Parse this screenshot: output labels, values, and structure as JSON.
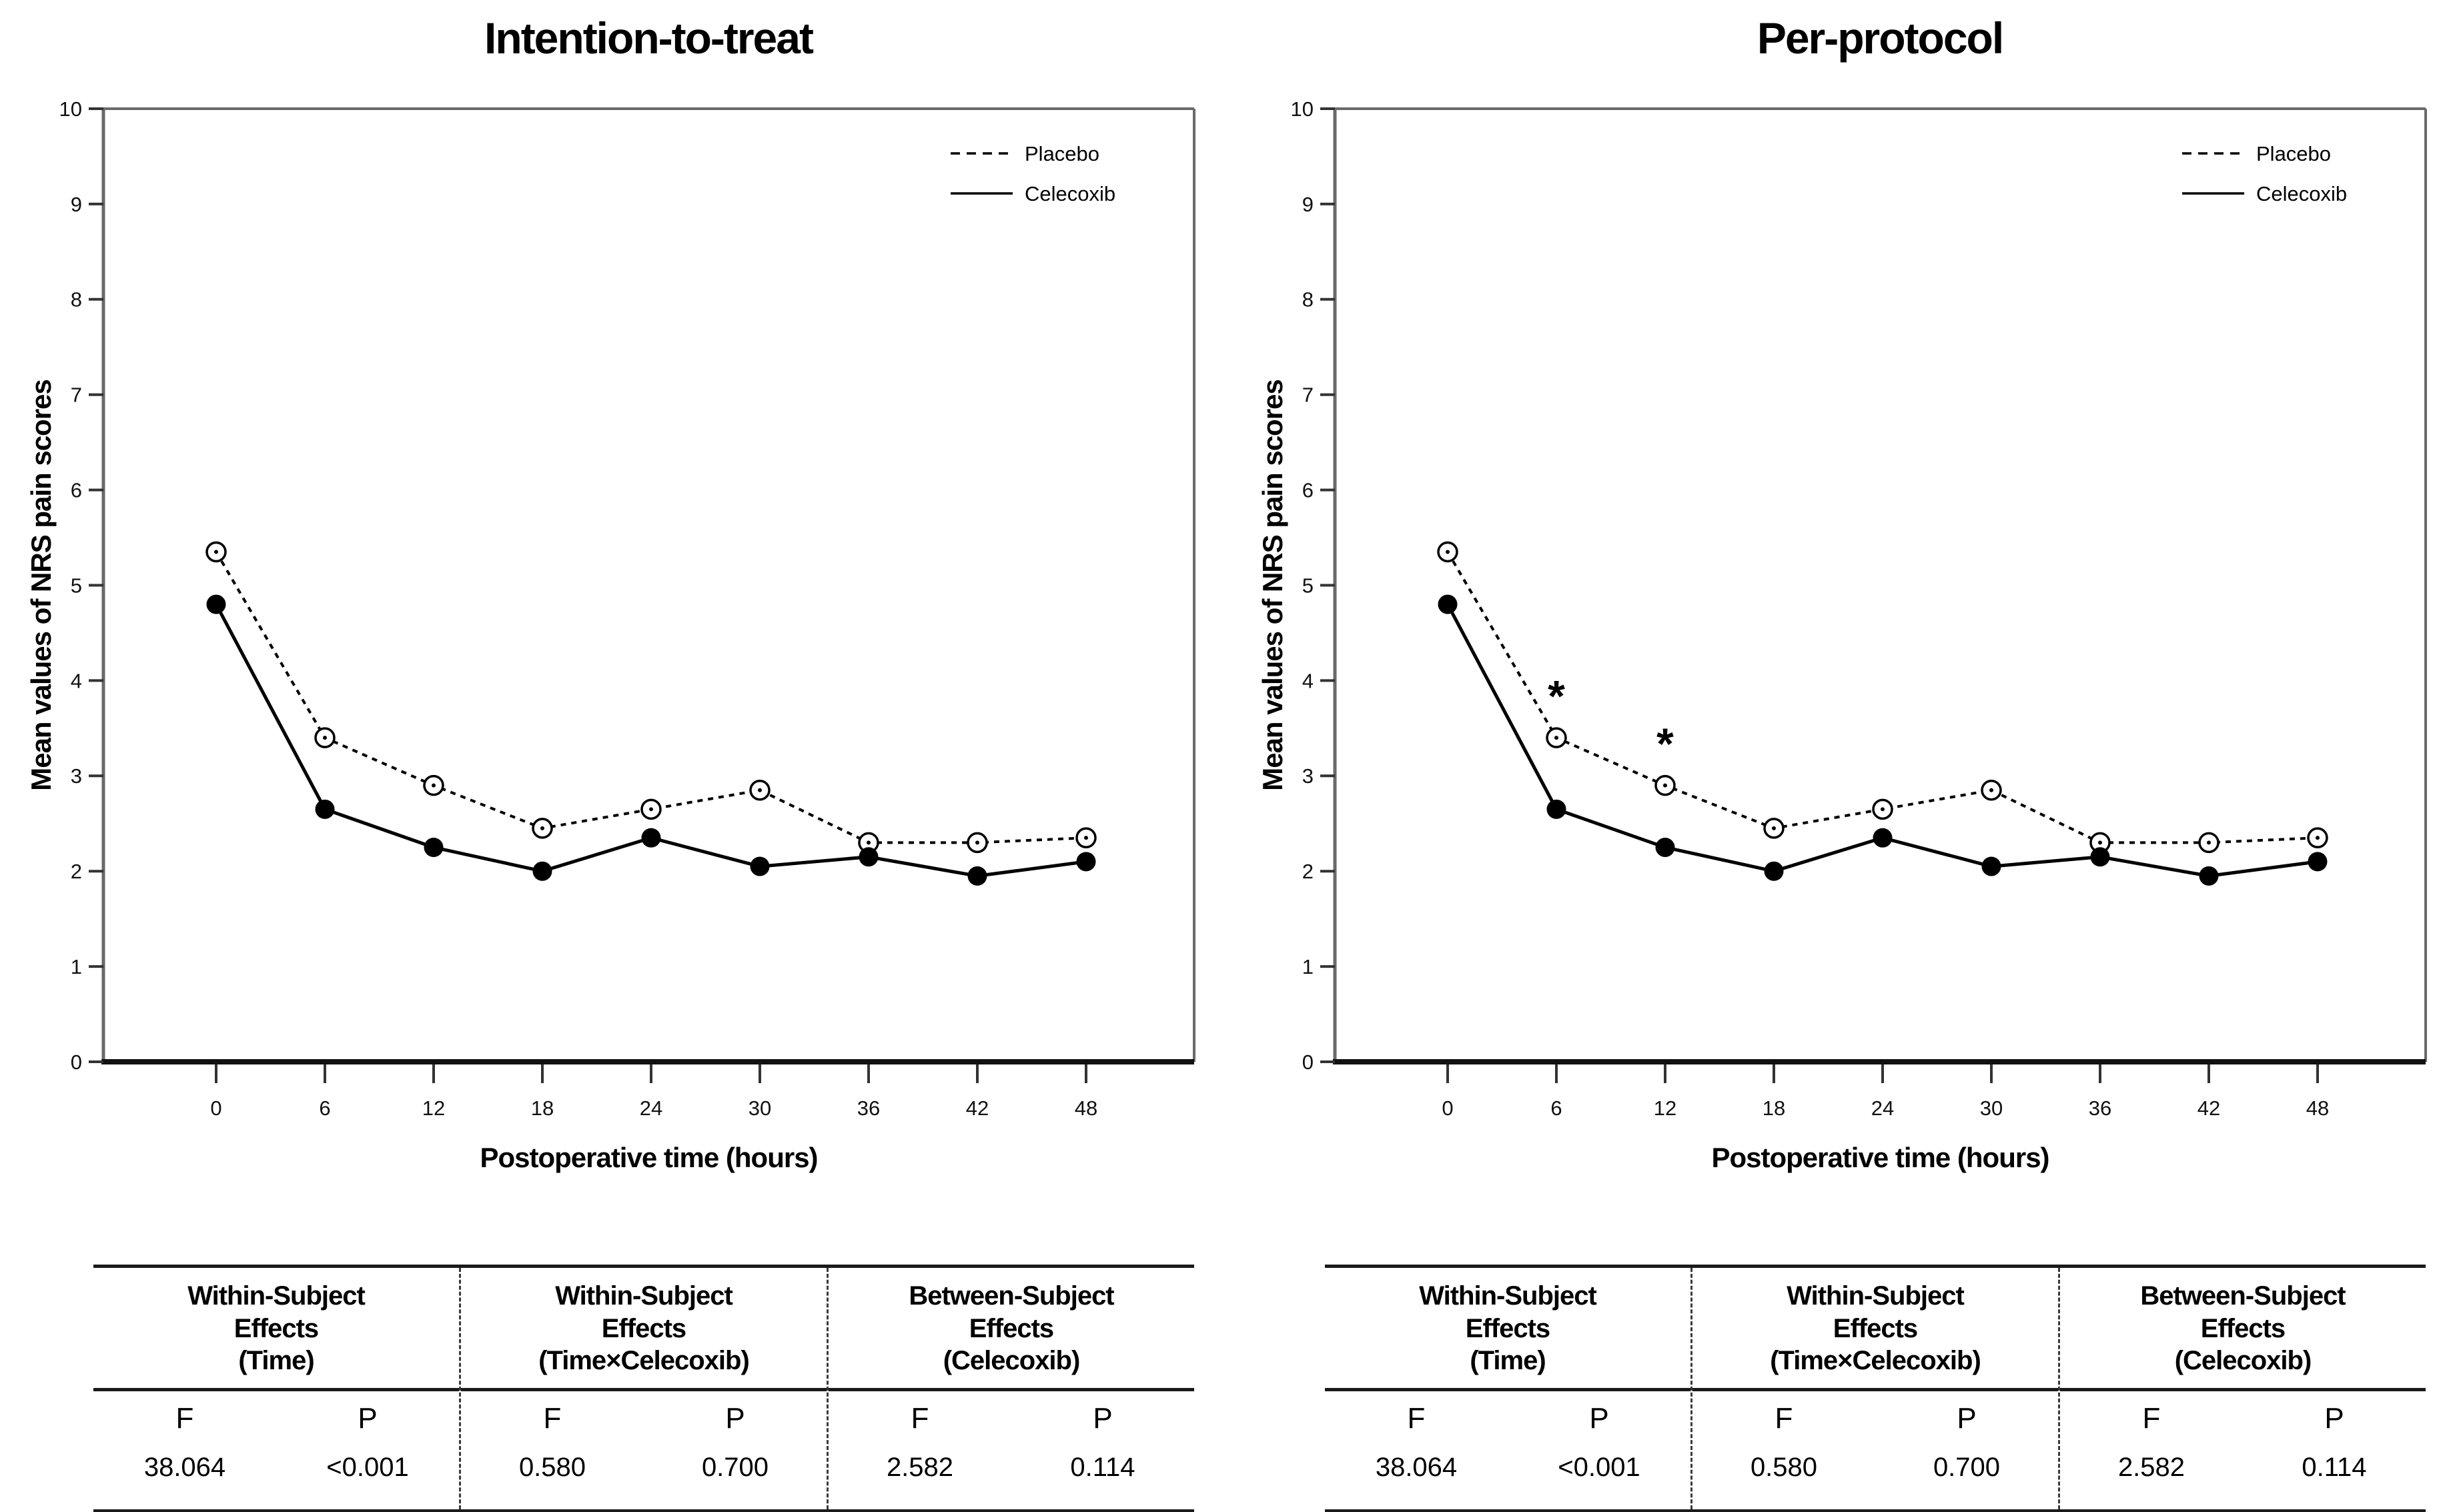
{
  "figure": {
    "background": "#ffffff",
    "colors": {
      "series": "#000000",
      "axis_frame": "#6a6a6a",
      "axis_bottom": "#111111",
      "tick": "#333333",
      "table_border": "#1a1a1a"
    }
  },
  "chart_data": [
    {
      "type": "line",
      "title": "Intention-to-treat",
      "xlabel": "Postoperative time (hours)",
      "ylabel": "Mean values of NRS pain scores",
      "x": [
        0,
        6,
        12,
        18,
        24,
        30,
        36,
        42,
        48
      ],
      "ylim": [
        0,
        10
      ],
      "yticks": [
        0,
        1,
        2,
        3,
        4,
        5,
        6,
        7,
        8,
        9,
        10
      ],
      "grid": false,
      "legend_position": "top-right-inside",
      "series": [
        {
          "name": "Placebo",
          "line_style": "dashed",
          "marker": "open-circle",
          "color": "#000000",
          "values": [
            5.35,
            3.4,
            2.9,
            2.45,
            2.65,
            2.85,
            2.3,
            2.3,
            2.35
          ]
        },
        {
          "name": "Celecoxib",
          "line_style": "solid",
          "marker": "filled-circle",
          "color": "#000000",
          "values": [
            4.8,
            2.65,
            2.25,
            2.0,
            2.35,
            2.05,
            2.15,
            1.95,
            2.1
          ]
        }
      ],
      "annotations": [],
      "effects_table": {
        "f_label": "F",
        "p_label": "P",
        "groups": [
          {
            "title_lines": [
              "Within-Subject",
              "Effects",
              "(Time)"
            ],
            "f": "38.064",
            "p": "<0.001"
          },
          {
            "title_lines": [
              "Within-Subject",
              "Effects",
              "(Time×Celecoxib)"
            ],
            "f": "0.580",
            "p": "0.700"
          },
          {
            "title_lines": [
              "Between-Subject",
              "Effects",
              "(Celecoxib)"
            ],
            "f": "2.582",
            "p": "0.114"
          }
        ]
      }
    },
    {
      "type": "line",
      "title": "Per-protocol",
      "xlabel": "Postoperative time (hours)",
      "ylabel": "Mean values of NRS pain scores",
      "x": [
        0,
        6,
        12,
        18,
        24,
        30,
        36,
        42,
        48
      ],
      "ylim": [
        0,
        10
      ],
      "yticks": [
        0,
        1,
        2,
        3,
        4,
        5,
        6,
        7,
        8,
        9,
        10
      ],
      "grid": false,
      "legend_position": "top-right-inside",
      "series": [
        {
          "name": "Placebo",
          "line_style": "dashed",
          "marker": "open-circle",
          "color": "#000000",
          "values": [
            5.35,
            3.4,
            2.9,
            2.45,
            2.65,
            2.85,
            2.3,
            2.3,
            2.35
          ]
        },
        {
          "name": "Celecoxib",
          "line_style": "solid",
          "marker": "filled-circle",
          "color": "#000000",
          "values": [
            4.8,
            2.65,
            2.25,
            2.0,
            2.35,
            2.05,
            2.15,
            1.95,
            2.1
          ]
        }
      ],
      "annotations": [
        {
          "text": "*",
          "x": 6,
          "y": 4.0
        },
        {
          "text": "*",
          "x": 12,
          "y": 3.5
        }
      ],
      "effects_table": {
        "f_label": "F",
        "p_label": "P",
        "groups": [
          {
            "title_lines": [
              "Within-Subject",
              "Effects",
              "(Time)"
            ],
            "f": "38.064",
            "p": "<0.001"
          },
          {
            "title_lines": [
              "Within-Subject",
              "Effects",
              "(Time×Celecoxib)"
            ],
            "f": "0.580",
            "p": "0.700"
          },
          {
            "title_lines": [
              "Between-Subject",
              "Effects",
              "(Celecoxib)"
            ],
            "f": "2.582",
            "p": "0.114"
          }
        ]
      }
    }
  ]
}
